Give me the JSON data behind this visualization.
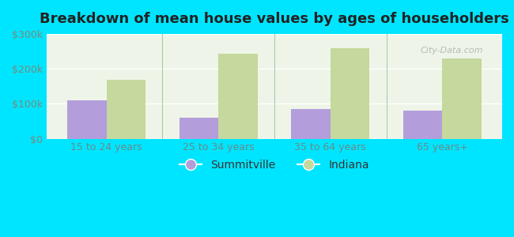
{
  "title": "Breakdown of mean house values by ages of householders",
  "categories": [
    "15 to 24 years",
    "25 to 34 years",
    "35 to 64 years",
    "65 years+"
  ],
  "summitville_values": [
    110000,
    60000,
    85000,
    80000
  ],
  "indiana_values": [
    168000,
    243000,
    258000,
    230000
  ],
  "summitville_color": "#b39ddb",
  "indiana_color": "#c5d89d",
  "background_outer": "#00e5ff",
  "background_inner": "#eef5e8",
  "ylim": [
    0,
    300000
  ],
  "yticks": [
    0,
    100000,
    200000,
    300000
  ],
  "ytick_labels": [
    "$0",
    "$100k",
    "$200k",
    "$300k"
  ],
  "bar_width": 0.35,
  "legend_labels": [
    "Summitville",
    "Indiana"
  ],
  "watermark": "City-Data.com"
}
